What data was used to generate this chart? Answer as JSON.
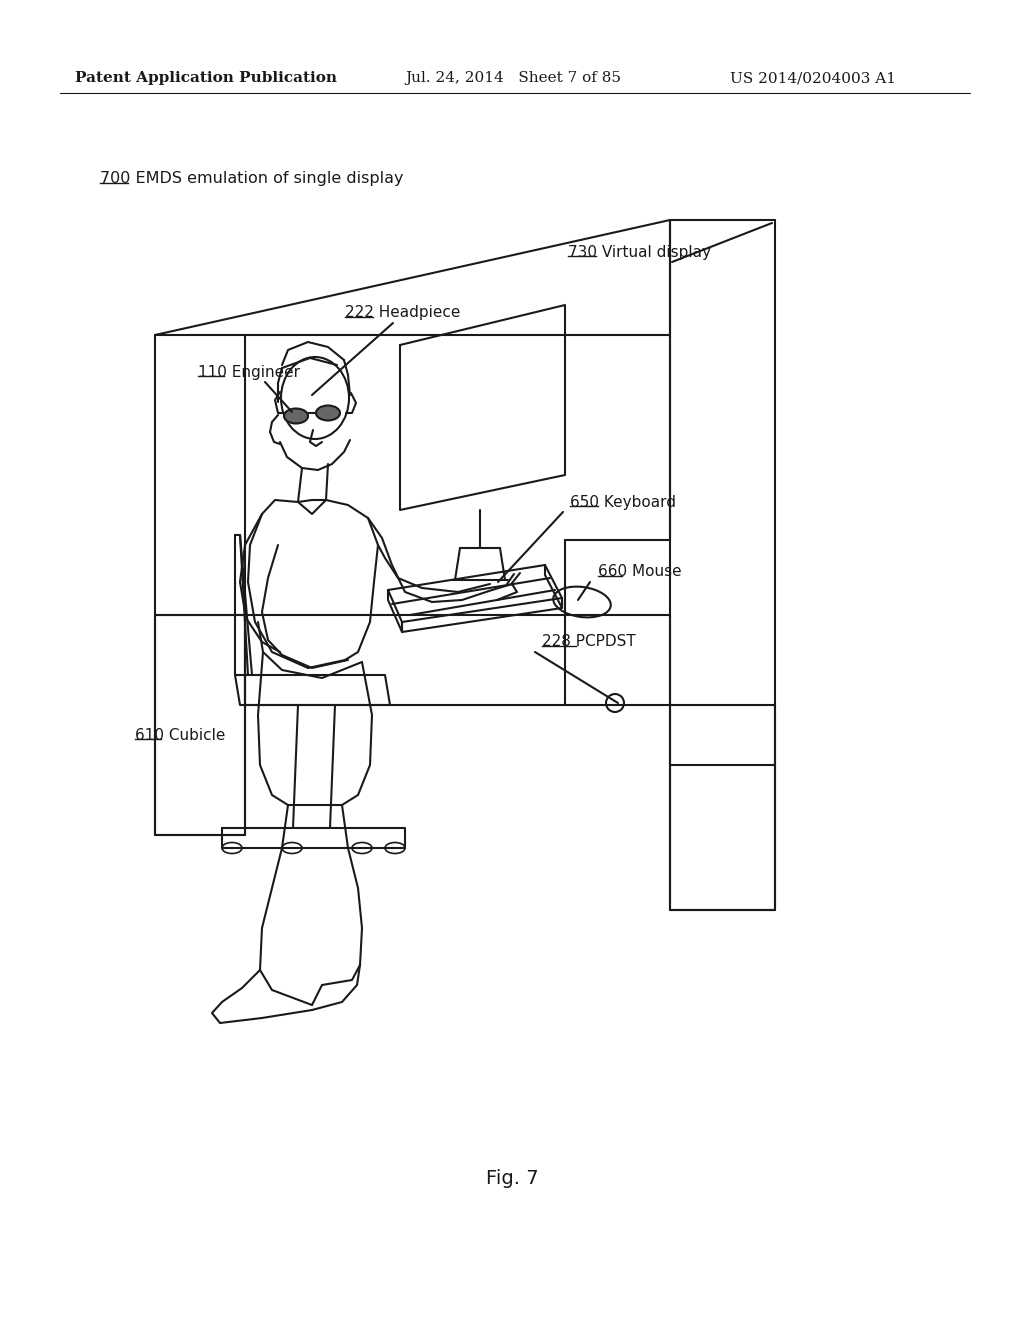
{
  "bg_color": "#ffffff",
  "header_left": "Patent Application Publication",
  "header_mid": "Jul. 24, 2014   Sheet 7 of 85",
  "header_right": "US 2014/0204003 A1",
  "label_700": "700 EMDS emulation of single display",
  "label_730": "730 Virtual display",
  "label_222": "222 Headpiece",
  "label_110": "110 Engineer",
  "label_650": "650 Keyboard",
  "label_660": "660 Mouse",
  "label_228": "228 PCPDST",
  "label_610": "610 Cubicle",
  "fig_label": "Fig. 7",
  "text_color": "#1a1a1a",
  "line_color": "#1a1a1a",
  "line_width": 1.5
}
